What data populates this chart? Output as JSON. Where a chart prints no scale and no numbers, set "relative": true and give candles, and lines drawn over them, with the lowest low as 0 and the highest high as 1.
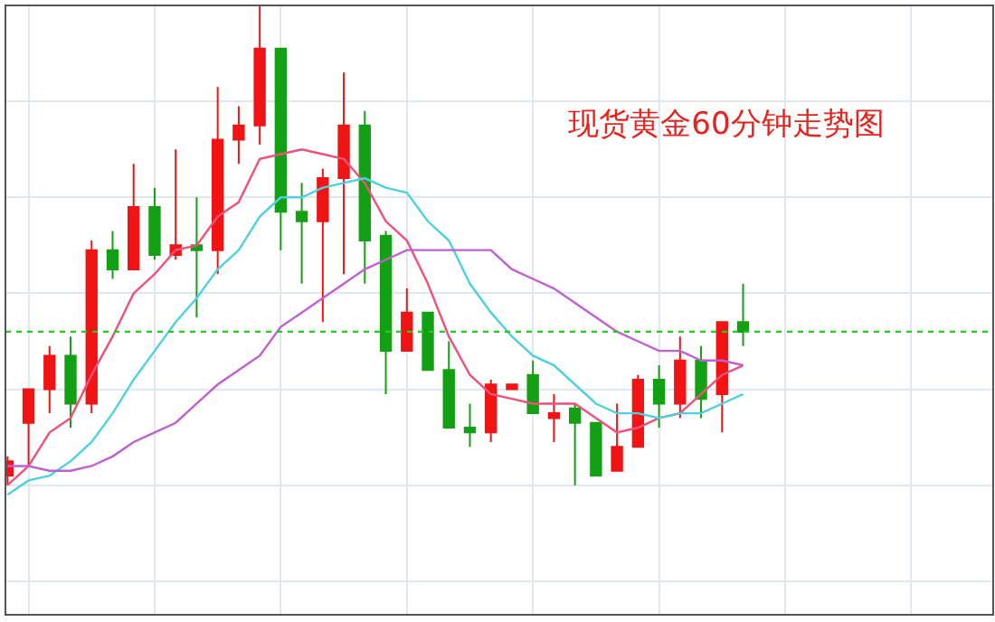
{
  "chart_data": {
    "type": "candlestick",
    "title": "现货黄金60分钟走势图",
    "relative": true,
    "grid": true,
    "categories": [
      null,
      null,
      null,
      null,
      null,
      null,
      null,
      null,
      null,
      null,
      null,
      null,
      null,
      null,
      null,
      null,
      null,
      null,
      null,
      null,
      null,
      null,
      null,
      null,
      null,
      null,
      null,
      null,
      null,
      null,
      null,
      null,
      null,
      null,
      null,
      null
    ],
    "ohlc": [
      [
        0.02,
        0.06,
        0,
        0.05
      ],
      [
        0.13,
        0.2,
        0.04,
        0.2
      ],
      [
        0.2,
        0.29,
        0.15,
        0.27
      ],
      [
        0.27,
        0.31,
        0.12,
        0.17
      ],
      [
        0.17,
        0.51,
        0.15,
        0.49
      ],
      [
        0.49,
        0.53,
        0.43,
        0.45
      ],
      [
        0.45,
        0.67,
        0.45,
        0.58
      ],
      [
        0.58,
        0.62,
        0.47,
        0.48
      ],
      [
        0.48,
        0.7,
        0.47,
        0.5
      ],
      [
        0.5,
        0.6,
        0.35,
        0.49
      ],
      [
        0.49,
        0.83,
        0.44,
        0.72
      ],
      [
        0.72,
        0.79,
        0.67,
        0.75
      ],
      [
        0.75,
        1,
        0.71,
        0.91
      ],
      [
        0.91,
        0.91,
        0.49,
        0.57
      ],
      [
        0.57,
        0.63,
        0.42,
        0.55
      ],
      [
        0.55,
        0.66,
        0.34,
        0.64
      ],
      [
        0.64,
        0.86,
        0.44,
        0.75
      ],
      [
        0.75,
        0.78,
        0.42,
        0.51
      ],
      [
        0.52,
        0.53,
        0.19,
        0.28
      ],
      [
        0.28,
        0.41,
        0.28,
        0.36
      ],
      [
        0.36,
        0.36,
        0.24,
        0.24
      ],
      [
        0.24,
        0.3,
        0.12,
        0.12
      ],
      [
        0.12,
        0.17,
        0.08,
        0.11
      ],
      [
        0.11,
        0.22,
        0.09,
        0.21
      ],
      [
        0.2,
        0.21,
        0.2,
        0.21
      ],
      [
        0.23,
        0.26,
        0.15,
        0.15
      ],
      [
        0.14,
        0.19,
        0.09,
        0.15
      ],
      [
        0.16,
        0.17,
        0,
        0.13
      ],
      [
        0.13,
        0.13,
        0.02,
        0.02
      ],
      [
        0.03,
        0.17,
        0.03,
        0.08
      ],
      [
        0.08,
        0.23,
        0.08,
        0.22
      ],
      [
        0.22,
        0.25,
        0.12,
        0.17
      ],
      [
        0.17,
        0.31,
        0.14,
        0.26
      ],
      [
        0.26,
        0.29,
        0.14,
        0.18
      ],
      [
        0.19,
        0.34,
        0.11,
        0.34
      ],
      [
        0.34,
        0.42,
        0.29,
        0.32
      ]
    ],
    "colors": [
      "#f01414",
      "#f01414",
      "#f01414",
      "#14a014",
      "#f01414",
      "#14a014",
      "#f01414",
      "#14a014",
      "#f01414",
      "#14a014",
      "#f01414",
      "#f01414",
      "#f01414",
      "#14a014",
      "#14a014",
      "#f01414",
      "#f01414",
      "#14a014",
      "#14a014",
      "#f01414",
      "#14a014",
      "#14a014",
      "#14a014",
      "#f01414",
      "#f01414",
      "#14a014",
      "#f01414",
      "#14a014",
      "#14a014",
      "#f01414",
      "#f01414",
      "#14a014",
      "#f01414",
      "#14a014",
      "#f01414",
      "#14a014"
    ],
    "series": [
      {
        "type": "line",
        "color": "#f0507a",
        "values": [
          0,
          0.04,
          0.11,
          0.14,
          0.23,
          0.31,
          0.4,
          0.44,
          0.49,
          0.5,
          0.56,
          0.59,
          0.68,
          0.69,
          0.7,
          0.69,
          0.68,
          0.63,
          0.55,
          0.51,
          0.42,
          0.31,
          0.23,
          0.19,
          0.18,
          0.17,
          0.17,
          0.17,
          0.14,
          0.11,
          0.12,
          0.14,
          0.15,
          0.19,
          0.23,
          0.25
        ]
      },
      {
        "type": "line",
        "color": "#4fd0e0",
        "values": [
          -0.02,
          0.01,
          0.02,
          0.05,
          0.09,
          0.15,
          0.22,
          0.28,
          0.34,
          0.39,
          0.45,
          0.49,
          0.56,
          0.6,
          0.6,
          0.62,
          0.63,
          0.64,
          0.62,
          0.61,
          0.55,
          0.51,
          0.42,
          0.36,
          0.31,
          0.27,
          0.25,
          0.21,
          0.17,
          0.15,
          0.15,
          0.14,
          0.15,
          0.15,
          0.17,
          0.19
        ]
      },
      {
        "type": "line",
        "color": "#c060d0",
        "values": [
          0.04,
          0.04,
          0.03,
          0.03,
          0.04,
          0.06,
          0.09,
          0.11,
          0.13,
          0.17,
          0.21,
          0.24,
          0.27,
          0.33,
          0.36,
          0.39,
          0.42,
          0.45,
          0.47,
          0.49,
          0.49,
          0.49,
          0.49,
          0.49,
          0.45,
          0.43,
          0.41,
          0.38,
          0.35,
          0.32,
          0.3,
          0.28,
          0.28,
          0.26,
          0.26,
          0.25
        ]
      }
    ],
    "ref_lines": [
      {
        "axis": "y",
        "value": 0.32,
        "color": "#22cc22",
        "line_style": "dotted"
      }
    ]
  }
}
